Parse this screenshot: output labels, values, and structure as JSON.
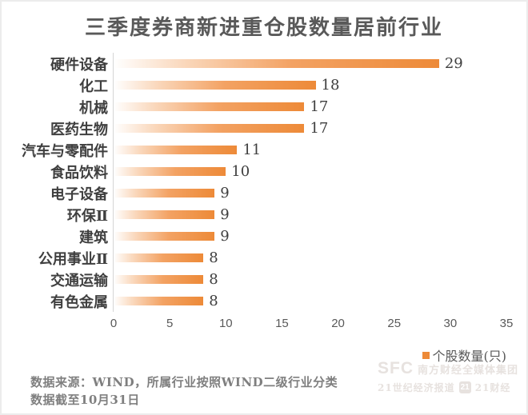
{
  "title": "三季度券商新进重仓股数量居前行业",
  "chart_data": {
    "type": "bar",
    "orientation": "horizontal",
    "title": "三季度券商新进重仓股数量居前行业",
    "categories": [
      "硬件设备",
      "化工",
      "机械",
      "医药生物",
      "汽车与零配件",
      "食品饮料",
      "电子设备",
      "环保Ⅱ",
      "建筑",
      "公用事业Ⅱ",
      "交通运输",
      "有色金属"
    ],
    "values": [
      29,
      18,
      17,
      17,
      11,
      10,
      9,
      9,
      9,
      8,
      8,
      8
    ],
    "series_name": "个股数量(只)",
    "xlabel": "",
    "ylabel": "",
    "xlim": [
      0,
      35
    ],
    "x_ticks": [
      0,
      5,
      10,
      15,
      20,
      25,
      30,
      35
    ],
    "grid": false,
    "legend_position": "bottom-right",
    "bar_color": "#ED8A38",
    "bar_gradient_start": "#FFFFFF",
    "data_labels": true
  },
  "legend": {
    "label": "个股数量(只)",
    "marker_color": "#ED8A38"
  },
  "notes": {
    "line1": "数据来源：WIND，所属行业按照WIND二级行业分类",
    "line2": "数据截至10月31日"
  },
  "watermark": {
    "sfc": "SFC",
    "group_name": "南方财经全媒体集团",
    "paper_name": "21世纪经济报道",
    "badge": "21",
    "brand": "21财经"
  }
}
